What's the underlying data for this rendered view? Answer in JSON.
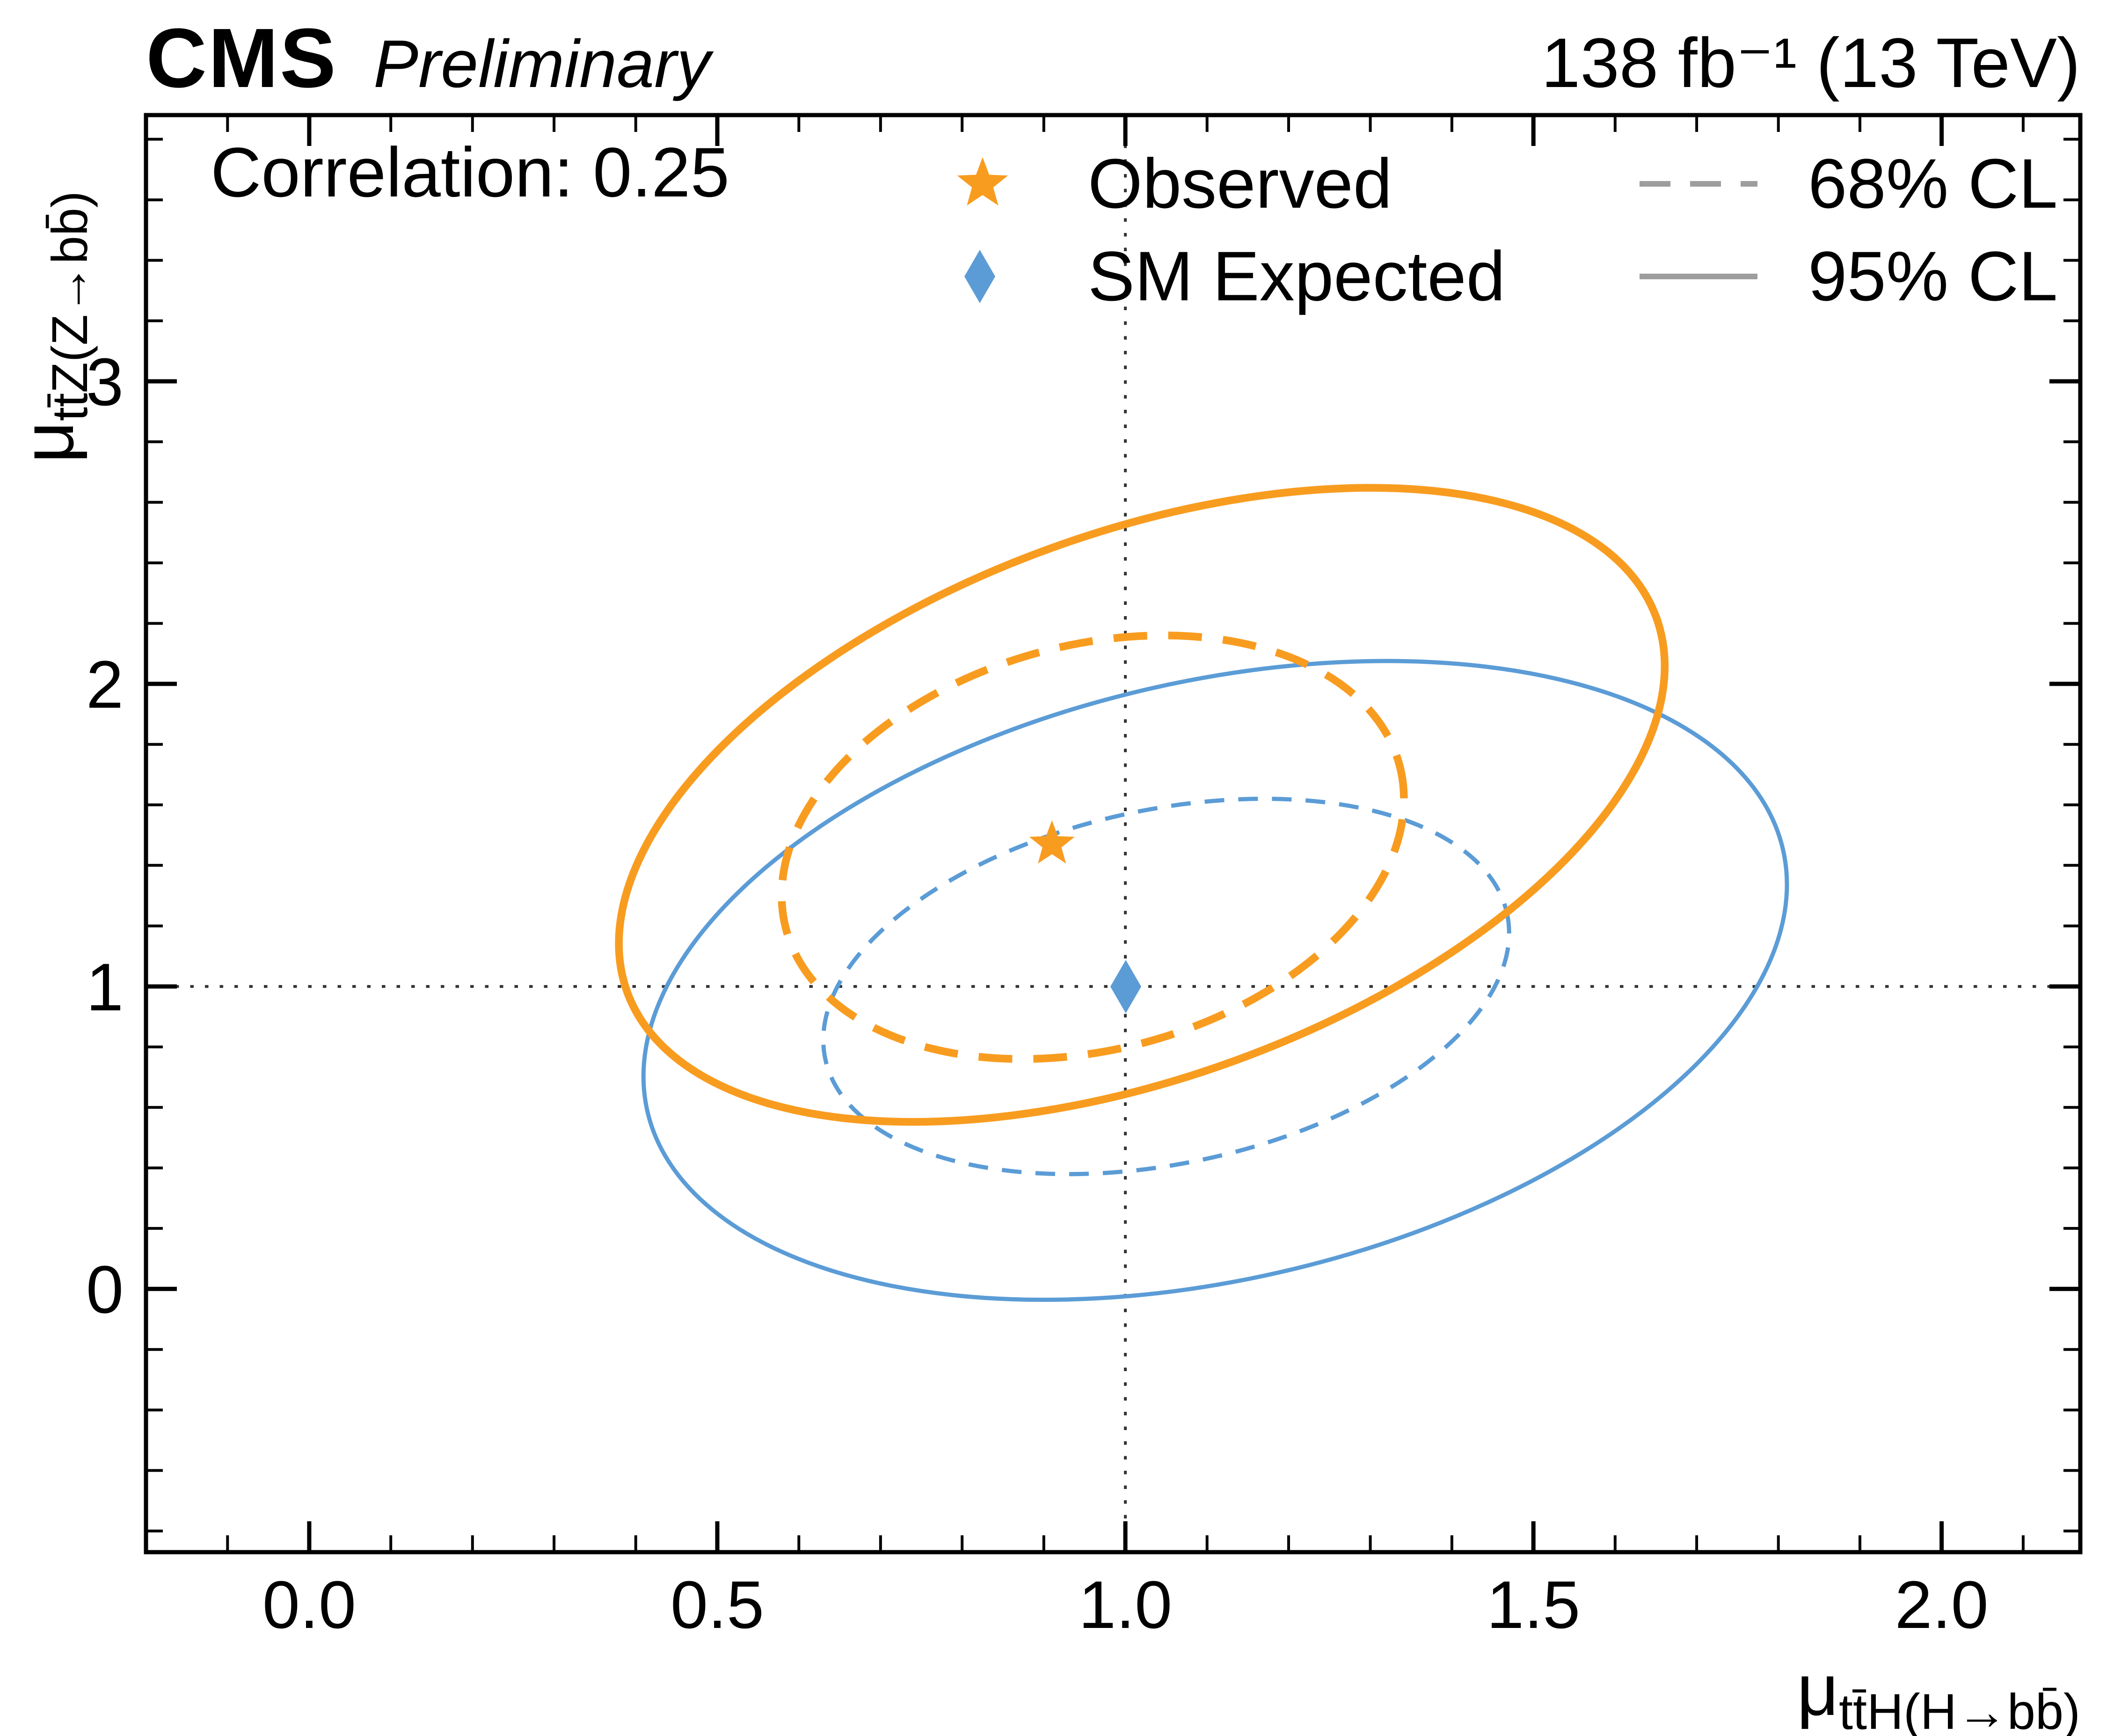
{
  "header": {
    "experiment": "CMS",
    "label": "Preliminary",
    "lumi": "138 fb⁻¹ (13 TeV)"
  },
  "annotations": {
    "correlation": "Correlation: 0.25"
  },
  "legend": {
    "observed": "Observed",
    "sm_expected": "SM Expected",
    "cl68": "68% CL",
    "cl95": "95% CL"
  },
  "colors": {
    "observed": "#f89c20",
    "expected": "#5b9cd6",
    "legend_line": "#9d9d9d",
    "crosshair": "#333333",
    "frame": "#000000"
  },
  "chart_data": {
    "type": "contour",
    "title": "CMS Preliminary 138 fb⁻¹ (13 TeV)",
    "xlabel": "μ_tt̄H(H→bb̄)",
    "ylabel": "μ_tt̄Z(Z→bb̄)",
    "xlabel_mu": "μ",
    "xlabel_sub": "tt̄H(H→bb̄)",
    "ylabel_mu": "μ",
    "ylabel_sub": "tt̄Z(Z→bb̄)",
    "xlim": [
      -0.2,
      2.17
    ],
    "ylim": [
      -0.87,
      3.88
    ],
    "xticks": [
      0,
      0.5,
      1,
      1.5,
      2
    ],
    "xtick_labels": [
      "0.0",
      "0.5",
      "1.0",
      "1.5",
      "2.0"
    ],
    "yticks": [
      0,
      1,
      2,
      3
    ],
    "ytick_labels": [
      "0",
      "1",
      "2",
      "3"
    ],
    "x_minor_step": 0.1,
    "y_minor_step": 0.2,
    "grid": false,
    "correlation": 0.25,
    "crosshair": {
      "x": 1.0,
      "y": 1.0
    },
    "best_fit_observed": {
      "x": 0.91,
      "y": 1.47
    },
    "sm_expected": {
      "x": 1.0,
      "y": 1.0
    },
    "contours": [
      {
        "name": "expected-95cl",
        "series": "SM Expected",
        "cl": "95% CL",
        "style": "solid",
        "color_key": "expected",
        "width": 3,
        "dash": "",
        "center": [
          1.11,
          1.02
        ],
        "rx": 0.714,
        "ry": 0.988,
        "rot_deg": -13,
        "x_extent": [
          0.41,
          1.81
        ],
        "y_extent": [
          -0.04,
          2.08
        ]
      },
      {
        "name": "expected-68cl",
        "series": "SM Expected",
        "cl": "68% CL",
        "style": "dashed",
        "color_key": "expected",
        "width": 3,
        "dash": "14 10",
        "center": [
          1.05,
          1.0
        ],
        "rx": 0.427,
        "ry": 0.585,
        "rot_deg": -12,
        "x_extent": [
          0.63,
          1.47
        ],
        "y_extent": [
          0.38,
          1.62
        ]
      },
      {
        "name": "observed-95cl",
        "series": "Observed",
        "cl": "95% CL",
        "style": "solid",
        "color_key": "observed",
        "width": 5.5,
        "dash": "",
        "center": [
          1.02,
          1.6
        ],
        "rx": 0.671,
        "ry": 0.9,
        "rot_deg": -20,
        "x_extent": [
          0.38,
          1.66
        ],
        "y_extent": [
          0.55,
          2.65
        ]
      },
      {
        "name": "observed-68cl",
        "series": "Observed",
        "cl": "68% CL",
        "style": "dashed",
        "color_key": "observed",
        "width": 5.5,
        "dash": "24 15",
        "center": [
          0.96,
          1.46
        ],
        "rx": 0.389,
        "ry": 0.668,
        "rot_deg": -15,
        "x_extent": [
          0.58,
          1.34
        ],
        "y_extent": [
          0.76,
          2.16
        ]
      }
    ]
  }
}
